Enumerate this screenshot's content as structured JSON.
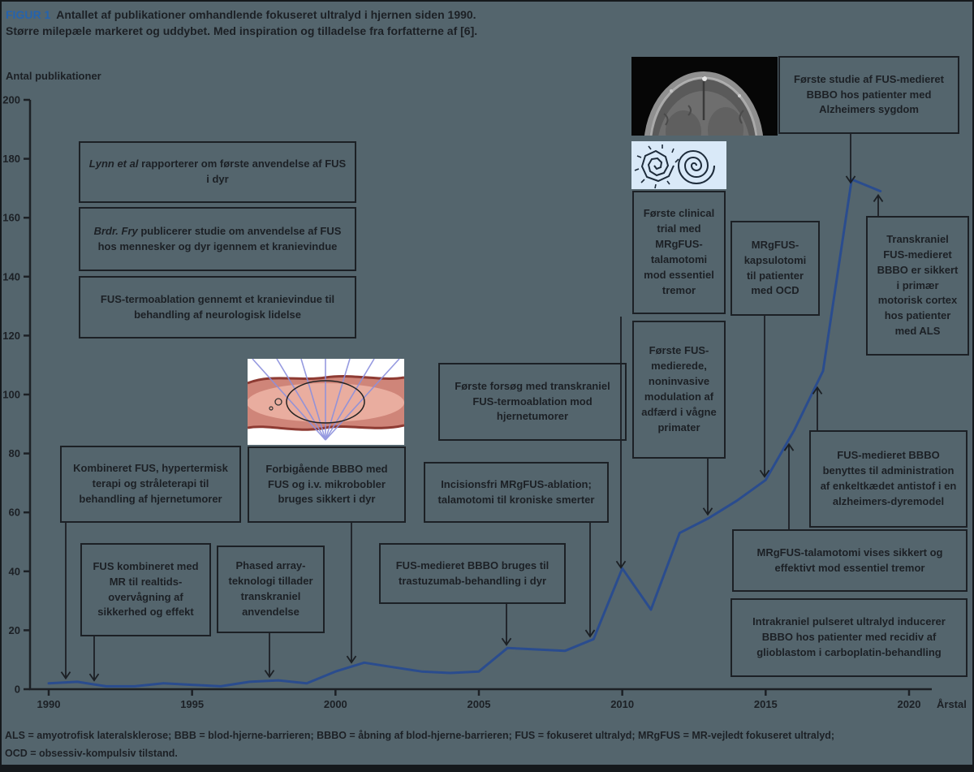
{
  "figure": {
    "label": "FIGUR 1",
    "title_rest": "Antallet af publikationer omhandlende fokuseret ultralyd i hjernen siden 1990.",
    "subtitle": "Større milepæle markeret og uddybet. Med inspiration og tilladelse fra forfatterne af [6].",
    "footnote_line1": "ALS = amyotrofisk lateralsklerose; BBB = blod-hjerne-barrieren; BBBO = åbning af blod-hjerne-barrieren; FUS = fokuseret ultralyd; MRgFUS = MR-vejledt fokuseret ultralyd;",
    "footnote_line2": "OCD = obsessiv-kompulsiv tilstand.",
    "accent_color": "#2563ae",
    "line_color": "#2a4c8e",
    "background_color": "#54656d"
  },
  "chart_data": {
    "type": "line",
    "title": "Antallet af publikationer omhandlende fokuseret ultralyd i hjernen siden 1990",
    "xlabel": "Årstal",
    "ylabel": "Antal publikationer",
    "x": [
      1990,
      1991,
      1992,
      1993,
      1994,
      1995,
      1996,
      1997,
      1998,
      1999,
      2000,
      2001,
      2002,
      2003,
      2004,
      2005,
      2006,
      2007,
      2008,
      2009,
      2010,
      2011,
      2012,
      2013,
      2014,
      2015,
      2016,
      2017,
      2018,
      2019
    ],
    "values": [
      2,
      2.5,
      1,
      1,
      2,
      1.5,
      1,
      2.5,
      3,
      2,
      6,
      9,
      7.5,
      6,
      5.5,
      6,
      14,
      13.5,
      13,
      17,
      41,
      27,
      53,
      58,
      64,
      71,
      88,
      108,
      173,
      169
    ],
    "xticks": [
      1990,
      1995,
      2000,
      2005,
      2010,
      2015,
      2020
    ],
    "yticks": [
      0,
      20,
      40,
      60,
      80,
      100,
      120,
      140,
      160,
      180,
      200
    ],
    "xlim": [
      1990,
      2021
    ],
    "ylim": [
      0,
      200
    ],
    "grid": false,
    "legend": null
  },
  "annotations": [
    {
      "id": "lynn",
      "lead": "Lynn et al",
      "rest": " rapporterer om første anvendelse af FUS i dyr",
      "target_year": null
    },
    {
      "id": "fry",
      "lead": "Brdr. Fry",
      "rest": " publicerer studie om anvendelse af FUS hos mennesker og dyr igennem et kranievindue",
      "target_year": null
    },
    {
      "id": "termo",
      "lead": "",
      "rest": "FUS-termoablation gennemt et kranievindue til behandling af neurologisk lidelse",
      "target_year": null
    },
    {
      "id": "kombineret",
      "lead": "",
      "rest": "Kombineret FUS, hypertermisk terapi og stråleterapi til behandling af hjernetumorer",
      "target_year": 1990
    },
    {
      "id": "fusmr",
      "lead": "",
      "rest": "FUS kombineret med MR til realtids-overvågning af sikkerhed og effekt",
      "target_year": 1991
    },
    {
      "id": "forbigaende",
      "lead": "",
      "rest": "Forbigående BBBO med FUS og i.v. mikrobobler bruges sikkert i dyr",
      "target_year": 2000
    },
    {
      "id": "phased",
      "lead": "",
      "rest": "Phased array-teknologi tillader transkraniel anvendelse",
      "target_year": 1998
    },
    {
      "id": "forsoeg",
      "lead": "",
      "rest": "Første forsøg med transkraniel FUS-termoablation mod hjernetumorer",
      "target_year": null
    },
    {
      "id": "incisionsfri",
      "lead": "",
      "rest": "Incisionsfri MRgFUS-ablation; talamotomi til kroniske smerter",
      "target_year": 2009
    },
    {
      "id": "trastuzumab",
      "lead": "",
      "rest": "FUS-medieret BBBO bruges til trastuzumab-behandling i dyr",
      "target_year": 2006
    },
    {
      "id": "clinical",
      "lead": "",
      "rest": "Første clinical trial med MRgFUS-talamotomi mod essentiel tremor",
      "target_year": 2010
    },
    {
      "id": "medierede",
      "lead": "",
      "rest": "Første FUS-medierede, noninvasive modulation af adfærd i vågne primater",
      "target_year": 2013
    },
    {
      "id": "ocd",
      "lead": "",
      "rest": "MRgFUS-kapsulotomi til patienter med OCD",
      "target_year": 2015
    },
    {
      "id": "alzheimer",
      "lead": "",
      "rest": "Første studie af FUS-medieret BBBO hos patienter med Alzheimers sygdom",
      "target_year": 2018
    },
    {
      "id": "als",
      "lead": "",
      "rest": "Transkraniel FUS-medieret BBBO er sikkert i primær motorisk cortex hos patienter med ALS",
      "target_year": 2019
    },
    {
      "id": "antistof",
      "lead": "",
      "rest": "FUS-medieret BBBO benyttes til administration af enkeltkædet antistof i en alzheimers-dyremodel",
      "target_year": 2017
    },
    {
      "id": "vises",
      "lead": "",
      "rest": "MRgFUS-talamotomi vises sikkert og effektivt mod essentiel tremor",
      "target_year": 2016
    },
    {
      "id": "intrakraniel",
      "lead": "",
      "rest": "Intrakraniel pulseret ultralyd inducerer BBBO hos patienter med recidiv af glioblastom i carboplatin-behandling",
      "target_year": null
    }
  ]
}
